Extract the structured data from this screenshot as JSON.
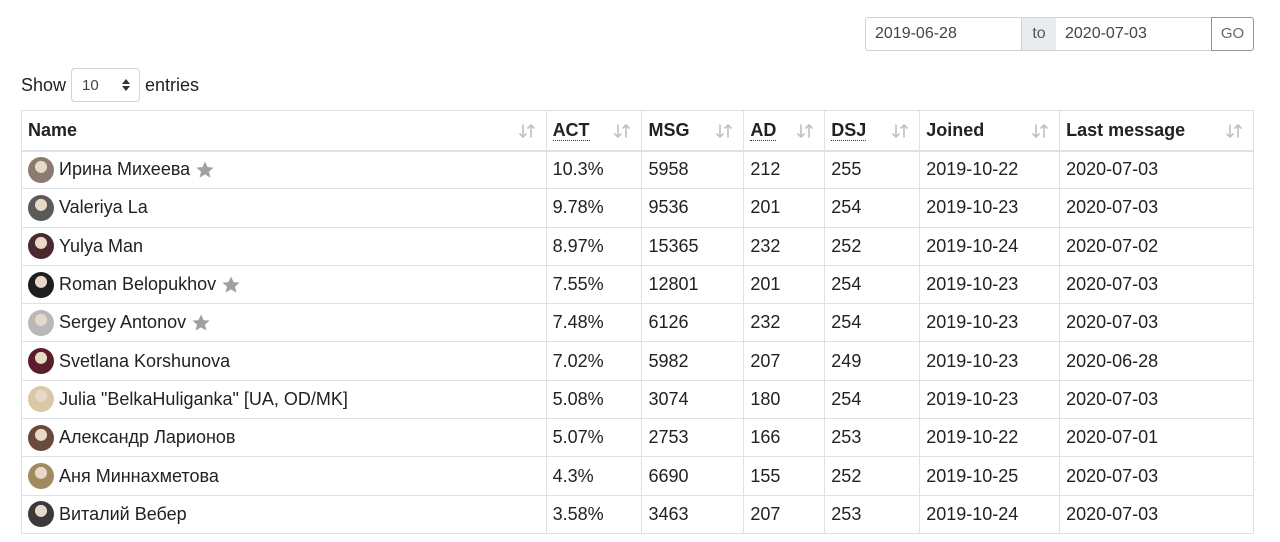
{
  "date_filter": {
    "from_value": "2019-06-28",
    "to_label": "to",
    "to_value": "2020-07-03",
    "go_label": "GO"
  },
  "length_control": {
    "show_label": "Show",
    "selected_value": "10",
    "entries_label": "entries"
  },
  "table": {
    "columns": [
      {
        "label": "Name",
        "abbr": false
      },
      {
        "label": "ACT",
        "abbr": true
      },
      {
        "label": "MSG",
        "abbr": false
      },
      {
        "label": "AD",
        "abbr": true
      },
      {
        "label": "DSJ",
        "abbr": true
      },
      {
        "label": "Joined",
        "abbr": false
      },
      {
        "label": "Last message",
        "abbr": false
      }
    ],
    "rows": [
      {
        "name": "Ирина Михеева",
        "starred": true,
        "avatar_color": "#8a7a70",
        "act": "10.3%",
        "msg": "5958",
        "ad": "212",
        "dsj": "255",
        "joined": "2019-10-22",
        "last_message": "2020-07-03"
      },
      {
        "name": "Valeriya La",
        "starred": false,
        "avatar_color": "#5a5a5a",
        "act": "9.78%",
        "msg": "9536",
        "ad": "201",
        "dsj": "254",
        "joined": "2019-10-23",
        "last_message": "2020-07-03"
      },
      {
        "name": "Yulya Man",
        "starred": false,
        "avatar_color": "#4a2a30",
        "act": "8.97%",
        "msg": "15365",
        "ad": "232",
        "dsj": "252",
        "joined": "2019-10-24",
        "last_message": "2020-07-02"
      },
      {
        "name": "Roman Belopukhov",
        "starred": true,
        "avatar_color": "#1e1e1e",
        "act": "7.55%",
        "msg": "12801",
        "ad": "201",
        "dsj": "254",
        "joined": "2019-10-23",
        "last_message": "2020-07-03"
      },
      {
        "name": "Sergey Antonov",
        "starred": true,
        "avatar_color": "#b8b8b8",
        "act": "7.48%",
        "msg": "6126",
        "ad": "232",
        "dsj": "254",
        "joined": "2019-10-23",
        "last_message": "2020-07-03"
      },
      {
        "name": "Svetlana Korshunova",
        "starred": false,
        "avatar_color": "#5a1e2a",
        "act": "7.02%",
        "msg": "5982",
        "ad": "207",
        "dsj": "249",
        "joined": "2019-10-23",
        "last_message": "2020-06-28"
      },
      {
        "name": "Julia \"BelkaHuliganka\" [UA, OD/MK]",
        "starred": false,
        "avatar_color": "#d9c7a8",
        "act": "5.08%",
        "msg": "3074",
        "ad": "180",
        "dsj": "254",
        "joined": "2019-10-23",
        "last_message": "2020-07-03"
      },
      {
        "name": "Александр Ларионов",
        "starred": false,
        "avatar_color": "#6a4a3a",
        "act": "5.07%",
        "msg": "2753",
        "ad": "166",
        "dsj": "253",
        "joined": "2019-10-22",
        "last_message": "2020-07-01"
      },
      {
        "name": "Аня Миннахметова",
        "starred": false,
        "avatar_color": "#a08a60",
        "act": "4.3%",
        "msg": "6690",
        "ad": "155",
        "dsj": "252",
        "joined": "2019-10-25",
        "last_message": "2020-07-03"
      },
      {
        "name": "Виталий Вебер",
        "starred": false,
        "avatar_color": "#3a3a3a",
        "act": "3.58%",
        "msg": "3463",
        "ad": "207",
        "dsj": "253",
        "joined": "2019-10-24",
        "last_message": "2020-07-03"
      }
    ]
  },
  "icons": {
    "sort": "sort-icon",
    "star": "star-icon",
    "select_arrows": "select-arrows-icon"
  },
  "colors": {
    "border": "#dee2e6",
    "star": "#a0a0a0",
    "sort_icon": "#c0c0c0",
    "addon_bg": "#e9ecef"
  }
}
